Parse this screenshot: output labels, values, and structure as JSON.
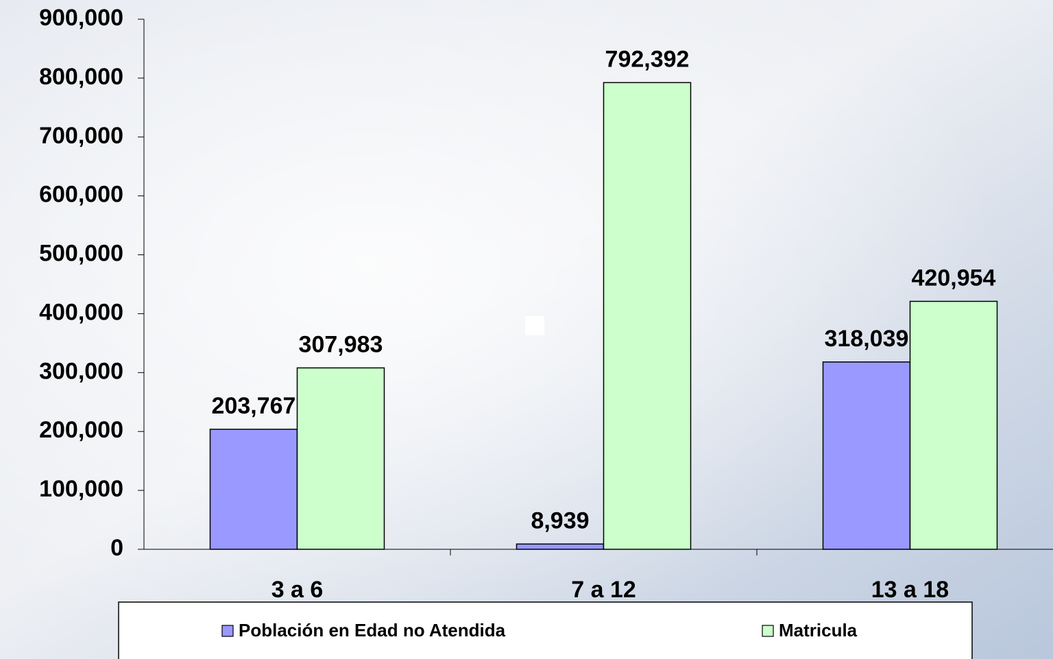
{
  "chart_data": {
    "type": "bar",
    "categories": [
      "3 a 6",
      "7 a 12",
      "13 a 18"
    ],
    "series": [
      {
        "name": "Población en Edad no Atendida",
        "color": "#9999ff",
        "values": [
          203767,
          8939,
          318039
        ],
        "value_labels": [
          "203,767",
          "8,939",
          "318,039"
        ]
      },
      {
        "name": "Matricula",
        "color": "#ccffcc",
        "values": [
          307983,
          792392,
          420954
        ],
        "value_labels": [
          "307,983",
          "792,392",
          "420,954"
        ]
      }
    ],
    "ylim": [
      0,
      900000
    ],
    "yticks": [
      0,
      {
        "value": 100000,
        "label": "100,000"
      },
      {
        "value": 200000,
        "label": "200,000"
      },
      {
        "value": 300000,
        "label": "300,000"
      },
      {
        "value": 400000,
        "label": "400,000"
      },
      {
        "value": 500000,
        "label": "500,000"
      },
      {
        "value": 600000,
        "label": "600,000"
      },
      {
        "value": 700000,
        "label": "700,000"
      },
      {
        "value": 800000,
        "label": "800,000"
      },
      {
        "value": 900000,
        "label": "900,000"
      }
    ],
    "grid": false
  }
}
